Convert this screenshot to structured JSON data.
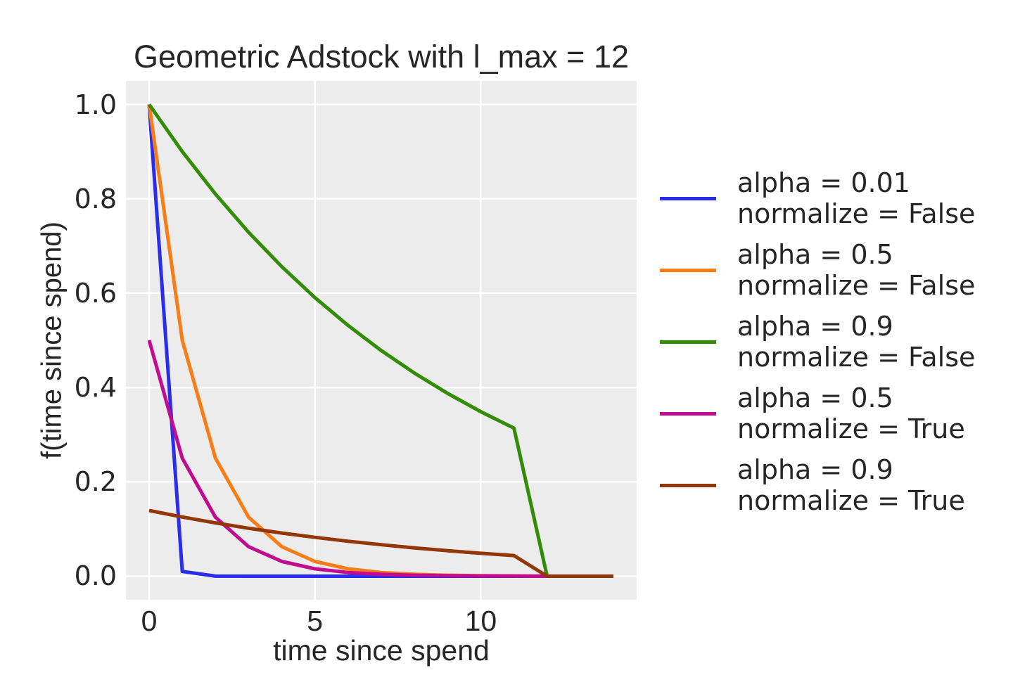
{
  "figure": {
    "background": "#ffffff",
    "text_color": "#262626"
  },
  "chart_data": {
    "type": "line",
    "title": "Geometric Adstock with l_max = 12",
    "xlabel": "time since spend",
    "ylabel": "f(time since spend)",
    "legend_position": "right of axes",
    "grid": true,
    "grid_color": "#ffffff",
    "plot_bg": "#ececec",
    "line_width": 5,
    "x": [
      0,
      1,
      2,
      3,
      4,
      5,
      6,
      7,
      8,
      9,
      10,
      11,
      12,
      13,
      14
    ],
    "xlim": [
      -0.7,
      14.7
    ],
    "ylim": [
      -0.05,
      1.05
    ],
    "xticks": [
      0,
      5,
      10
    ],
    "xtick_labels": [
      "0",
      "5",
      "10"
    ],
    "yticks": [
      0.0,
      0.2,
      0.4,
      0.6,
      0.8,
      1.0
    ],
    "ytick_labels": [
      "0.0",
      "0.2",
      "0.4",
      "0.6",
      "0.8",
      "1.0"
    ],
    "series": [
      {
        "legend_lines": [
          "alpha = 0.01",
          "normalize = False"
        ],
        "alpha": 0.01,
        "normalize": "False",
        "color": "#2a2eec",
        "values": [
          1.0,
          0.01,
          0.0001,
          0.0,
          0.0,
          0.0,
          0.0,
          0.0,
          0.0,
          0.0,
          0.0,
          0.0,
          0.0,
          0.0,
          0.0
        ]
      },
      {
        "legend_lines": [
          "alpha = 0.5",
          "normalize = False"
        ],
        "alpha": 0.5,
        "normalize": "False",
        "color": "#fa7c17",
        "values": [
          1.0,
          0.5,
          0.25,
          0.125,
          0.0625,
          0.03125,
          0.01563,
          0.00781,
          0.00391,
          0.00195,
          0.00098,
          0.00049,
          0.0,
          0.0,
          0.0
        ]
      },
      {
        "legend_lines": [
          "alpha = 0.9",
          "normalize = False"
        ],
        "alpha": 0.9,
        "normalize": "False",
        "color": "#328c06",
        "values": [
          1.0,
          0.9,
          0.81,
          0.729,
          0.6561,
          0.59049,
          0.53144,
          0.4783,
          0.43047,
          0.38742,
          0.34868,
          0.31381,
          0.0,
          0.0,
          0.0
        ]
      },
      {
        "legend_lines": [
          "alpha = 0.5",
          "normalize = True"
        ],
        "alpha": 0.5,
        "normalize": "True",
        "color": "#c10c90",
        "values": [
          0.50012,
          0.25006,
          0.12503,
          0.06252,
          0.03126,
          0.01563,
          0.00781,
          0.00391,
          0.00195,
          0.00098,
          0.00049,
          0.00024,
          0.0,
          0.0,
          0.0
        ]
      },
      {
        "legend_lines": [
          "alpha = 0.9",
          "normalize = True"
        ],
        "alpha": 0.9,
        "normalize": "True",
        "color": "#933708",
        "values": [
          0.13935,
          0.12542,
          0.11287,
          0.10159,
          0.09143,
          0.08229,
          0.07406,
          0.06665,
          0.05999,
          0.05399,
          0.04859,
          0.04373,
          0.0,
          0.0,
          0.0
        ]
      }
    ]
  }
}
